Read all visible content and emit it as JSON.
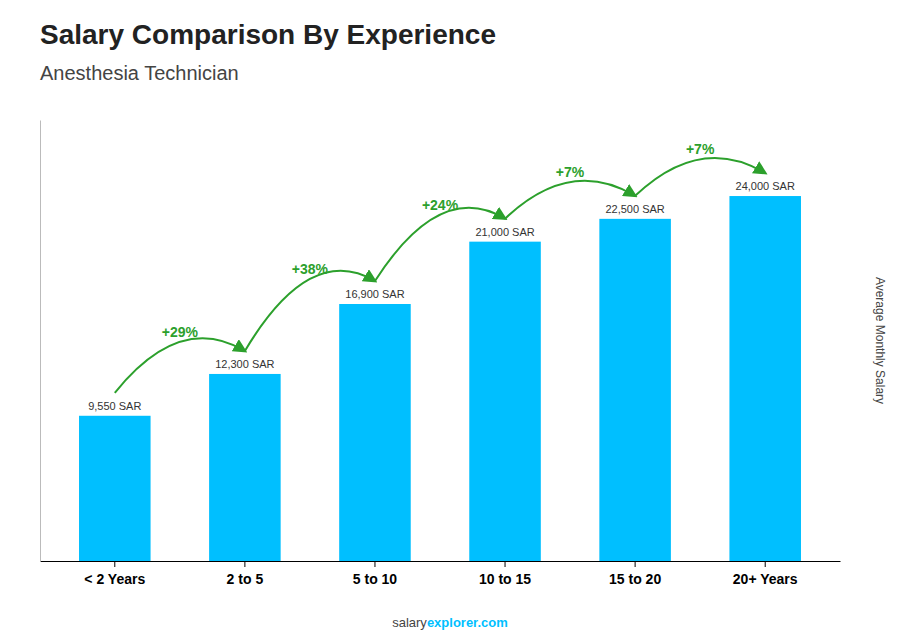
{
  "chart_data": {
    "type": "bar",
    "title": "Salary Comparison By Experience",
    "subtitle": "Anesthesia Technician",
    "ylabel": "Average Monthly Salary",
    "categories": [
      "< 2 Years",
      "2 to 5",
      "5 to 10",
      "10 to 15",
      "15 to 20",
      "20+ Years"
    ],
    "values": [
      9550,
      12300,
      16900,
      21000,
      22500,
      24000
    ],
    "value_labels": [
      "9,550 SAR",
      "12,300 SAR",
      "16,900 SAR",
      "21,000 SAR",
      "22,500 SAR",
      "24,000 SAR"
    ],
    "data_labels": true,
    "annotations": [
      "+29%",
      "+38%",
      "+24%",
      "+7%",
      "+7%"
    ],
    "footer": [
      "salary",
      "explorer.com"
    ],
    "color": "#00BFFF",
    "ylim": [
      0,
      29000
    ],
    "tick_labels": "x"
  }
}
